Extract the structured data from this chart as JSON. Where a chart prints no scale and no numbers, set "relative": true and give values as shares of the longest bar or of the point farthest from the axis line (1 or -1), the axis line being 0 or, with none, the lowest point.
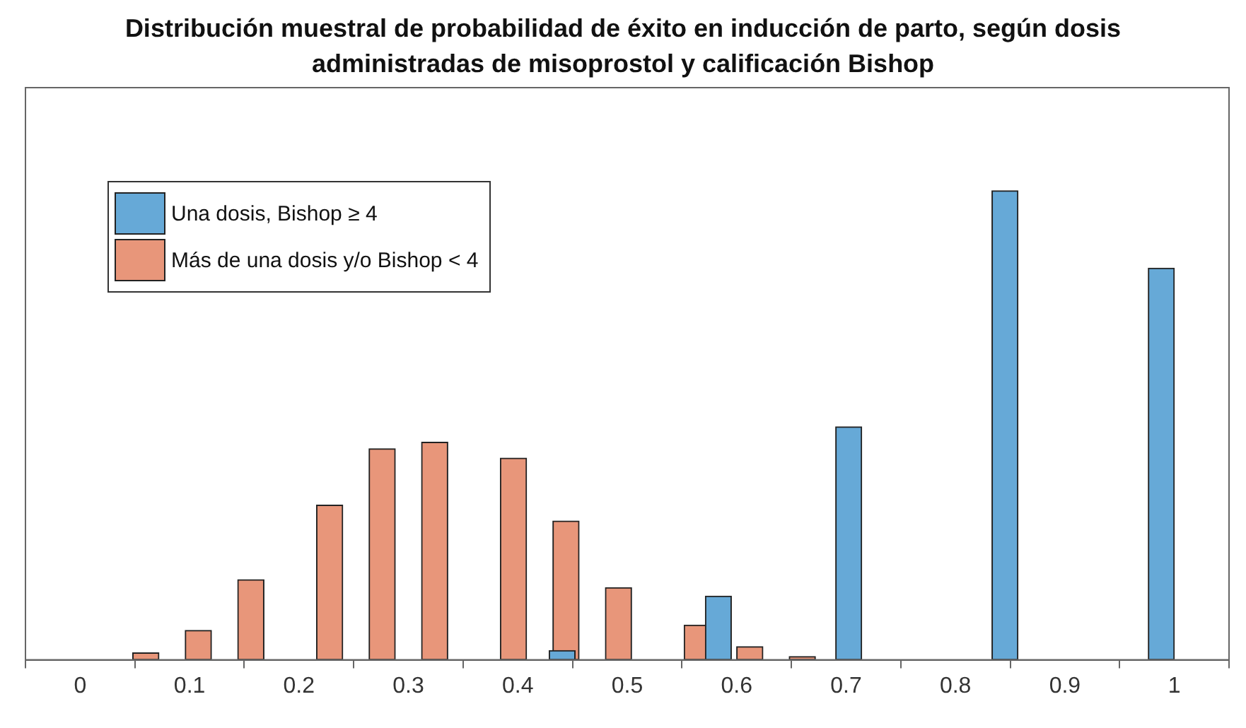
{
  "chart_data": {
    "type": "bar",
    "title": "Distribución muestral de probabilidad de éxito en inducción de parto, según dosis administradas de misoprostol y calificación Bishop",
    "relative": true,
    "xlim": [
      -0.05,
      1.05
    ],
    "xticks": [
      0,
      0.1,
      0.2,
      0.3,
      0.4,
      0.5,
      0.6,
      0.7,
      0.8,
      0.9,
      1
    ],
    "grid": false,
    "legend": "top left",
    "series": [
      {
        "name": "Una dosis, Bishop ≥ 4",
        "color": "#66a9d7",
        "x": [
          0.4405,
          0.4643,
          0.4881,
          0.5119,
          0.5357,
          0.5595,
          0.5833,
          0.6071,
          0.631,
          0.6548,
          0.6786,
          0.7024,
          0.7262,
          0.75,
          0.7738,
          0.7976,
          0.8214,
          0.8452,
          0.869,
          0.8929,
          0.9167,
          0.9405,
          0.9643,
          0.9881
        ],
        "values": [
          0.02,
          0,
          0,
          0,
          0,
          0,
          0.136,
          0,
          0,
          0,
          0,
          0.497,
          0,
          0,
          0,
          0,
          0,
          1,
          0,
          0,
          0,
          0,
          0,
          0.835
        ]
      },
      {
        "name": "Más de una dosis y/o Bishop < 4",
        "color": "#e8967a",
        "x": [
          0.012,
          0.036,
          0.06,
          0.084,
          0.108,
          0.132,
          0.156,
          0.18,
          0.204,
          0.228,
          0.252,
          0.276,
          0.3,
          0.324,
          0.348,
          0.372,
          0.396,
          0.42,
          0.444,
          0.468,
          0.492,
          0.516,
          0.54,
          0.564,
          0.588,
          0.612,
          0.636,
          0.66
        ],
        "values": [
          0,
          0,
          0.015,
          0,
          0.063,
          0,
          0.171,
          0,
          0,
          0.33,
          0,
          0.45,
          0,
          0.464,
          0,
          0,
          0.43,
          0,
          0.296,
          0,
          0.154,
          0,
          0,
          0.074,
          0,
          0.028,
          0,
          0.007
        ]
      }
    ]
  }
}
